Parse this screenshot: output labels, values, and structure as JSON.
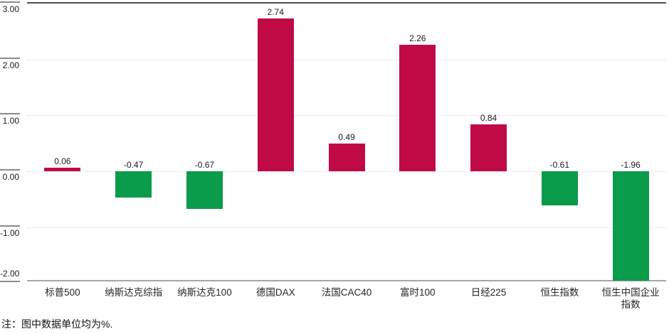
{
  "chart_data": {
    "type": "bar",
    "title": "",
    "categories": [
      "标普500",
      "纳斯达克综指",
      "纳斯达克100",
      "德国DAX",
      "法国CAC40",
      "富时100",
      "日经225",
      "恒生指数",
      "恒生中国企业指数"
    ],
    "values": [
      0.06,
      -0.47,
      -0.67,
      2.74,
      0.49,
      2.26,
      0.84,
      -0.61,
      -1.96
    ],
    "value_labels": [
      "0.06",
      "-0.47",
      "-0.67",
      "2.74",
      "0.49",
      "2.26",
      "0.84",
      "-0.61",
      "-1.96"
    ],
    "y_ticks": [
      {
        "value": 3,
        "label": "3.00"
      },
      {
        "value": 2,
        "label": "2.00"
      },
      {
        "value": 1,
        "label": "1.00"
      },
      {
        "value": 0,
        "label": "0.00"
      },
      {
        "value": -1,
        "label": "-1.00"
      },
      {
        "value": -2,
        "label": "-2.00"
      }
    ],
    "ylim": [
      -2.0,
      3.0
    ],
    "unit": "%",
    "grid": "horizontal-dotted",
    "legend": "none",
    "note": "注：图中数据单位均为%.",
    "colors": {
      "positive_bar": "#C00A46",
      "negative_bar": "#0A9B4B",
      "gridline": "#DCDCDC",
      "axis_line": "#A6A6A6",
      "top_border": "#4D4D4D",
      "tick": "#8C8C8C",
      "text": "#1A1A1A"
    }
  }
}
